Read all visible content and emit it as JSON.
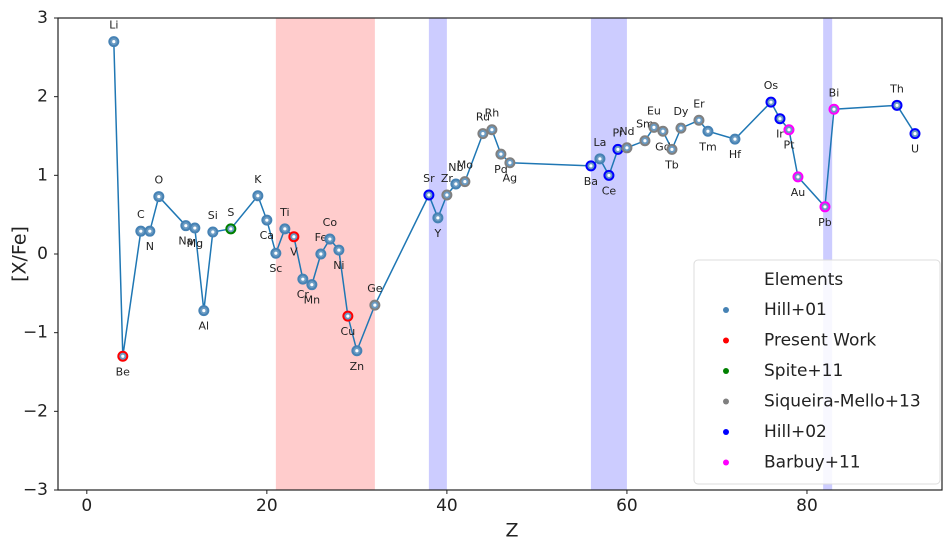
{
  "chart_data": {
    "type": "line",
    "xlabel": "Z",
    "ylabel": "[X/Fe]",
    "xlim": [
      -3.2,
      95
    ],
    "ylim": [
      -3,
      3
    ],
    "xticks": [
      0,
      20,
      40,
      60,
      80
    ],
    "yticks": [
      {
        "value": -3,
        "label": "−3"
      },
      {
        "value": -2,
        "label": "−2"
      },
      {
        "value": -1,
        "label": "−1"
      },
      0,
      1,
      2,
      3
    ],
    "line_color": "#1f77b4",
    "labels": [
      "Li",
      "Be",
      "C",
      "N",
      "O",
      "Na",
      "Mg",
      "Al",
      "Si",
      "S",
      "K",
      "Ca",
      "Sc",
      "Ti",
      "V",
      "Cr",
      "Mn",
      "Fe",
      "Co",
      "Ni",
      "Cu",
      "Zn",
      "Ge",
      "Sr",
      "Y",
      "Zr",
      "Nb",
      "Mo",
      "Ru",
      "Rh",
      "Pd",
      "Ag",
      "Ba",
      "La",
      "Ce",
      "Pr",
      "Nd",
      "Sm",
      "Eu",
      "Gd",
      "Tb",
      "Dy",
      "Er",
      "Tm",
      "Hf",
      "Os",
      "Ir",
      "Pt",
      "Au",
      "Pb",
      "Bi",
      "Th",
      "U"
    ],
    "x": [
      3,
      4,
      6,
      7,
      8,
      11,
      12,
      13,
      14,
      16,
      19,
      20,
      21,
      22,
      23,
      24,
      25,
      26,
      27,
      28,
      29,
      30,
      32,
      38,
      39,
      40,
      41,
      42,
      44,
      45,
      46,
      47,
      56,
      57,
      58,
      59,
      60,
      62,
      63,
      64,
      65,
      66,
      68,
      69,
      72,
      76,
      77,
      78,
      79,
      82,
      83,
      90,
      92
    ],
    "values": [
      2.7,
      -1.3,
      0.29,
      0.29,
      0.73,
      0.36,
      0.33,
      -0.72,
      0.28,
      0.32,
      0.74,
      0.43,
      0.01,
      0.32,
      0.22,
      -0.32,
      -0.39,
      0.0,
      0.19,
      0.05,
      -0.79,
      -1.23,
      -0.65,
      0.75,
      0.46,
      0.75,
      0.89,
      0.92,
      1.53,
      1.58,
      1.27,
      1.16,
      1.12,
      1.21,
      1.0,
      1.33,
      1.35,
      1.44,
      1.61,
      1.56,
      1.33,
      1.6,
      1.7,
      1.56,
      1.46,
      1.93,
      1.72,
      1.58,
      0.98,
      0.6,
      1.84,
      1.89,
      1.53
    ],
    "source": [
      "Hill+01",
      "Present Work",
      "Hill+01",
      "Hill+01",
      "Hill+01",
      "Hill+01",
      "Hill+01",
      "Hill+01",
      "Hill+01",
      "Spite+11",
      "Hill+01",
      "Hill+01",
      "Hill+01",
      "Hill+01",
      "Present Work",
      "Hill+01",
      "Hill+01",
      "Hill+01",
      "Hill+01",
      "Hill+01",
      "Present Work",
      "Hill+01",
      "Siqueira-Mello+13",
      "Hill+02",
      "Hill+01",
      "Siqueira-Mello+13",
      "Hill+01",
      "Siqueira-Mello+13",
      "Siqueira-Mello+13",
      "Siqueira-Mello+13",
      "Siqueira-Mello+13",
      "Siqueira-Mello+13",
      "Hill+02",
      "Hill+01",
      "Hill+02",
      "Hill+02",
      "Siqueira-Mello+13",
      "Siqueira-Mello+13",
      "Siqueira-Mello+13",
      "Siqueira-Mello+13",
      "Siqueira-Mello+13",
      "Siqueira-Mello+13",
      "Siqueira-Mello+13",
      "Hill+01",
      "Hill+01",
      "Hill+02",
      "Hill+02",
      "Barbuy+11",
      "Barbuy+11",
      "Barbuy+11",
      "Barbuy+11",
      "Hill+02",
      "Hill+02"
    ],
    "legend_title": "Elements",
    "legend_position": "lower right",
    "series": [
      {
        "name": "Hill+01",
        "color": "#4682b4"
      },
      {
        "name": "Present Work",
        "color": "#ff0000"
      },
      {
        "name": "Spite+11",
        "color": "#008000"
      },
      {
        "name": "Siqueira-Mello+13",
        "color": "#808080"
      },
      {
        "name": "Hill+02",
        "color": "#0000ff"
      },
      {
        "name": "Barbuy+11",
        "color": "#ff00ff"
      }
    ],
    "spans": [
      {
        "range": [
          21,
          32
        ],
        "color": "#ffcccc"
      },
      {
        "range": [
          38,
          40
        ],
        "color": "#ccccff"
      },
      {
        "range": [
          56,
          60
        ],
        "color": "#ccccff"
      },
      {
        "range": [
          81.8,
          82.8
        ],
        "color": "#ccccff"
      }
    ]
  }
}
